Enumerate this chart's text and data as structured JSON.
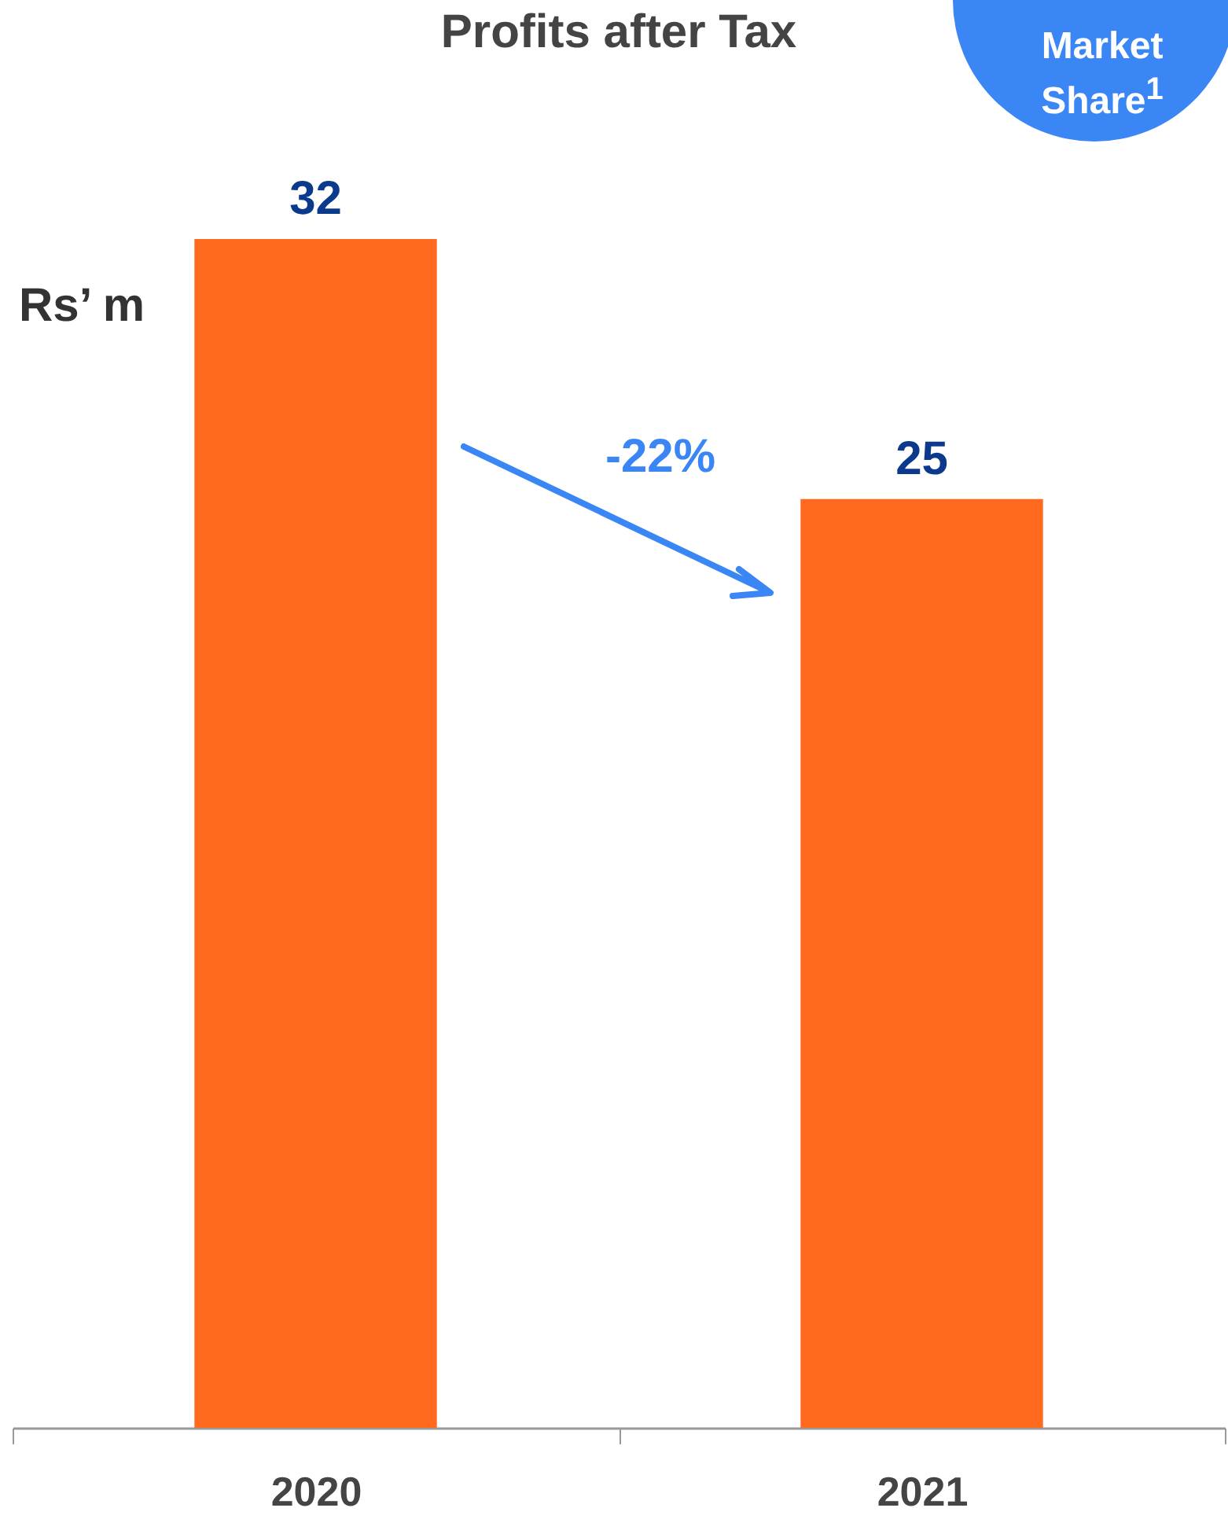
{
  "chart_data": {
    "type": "bar",
    "title": "Profits after Tax",
    "ylabel": "Rs’ m",
    "categories": [
      "2020",
      "2021"
    ],
    "values": [
      32,
      25
    ],
    "color": "#ff6a1f",
    "data_labels": true,
    "tick_labels": "x",
    "annotations": [
      "-22%",
      "Market Share$^{1}$"
    ]
  }
}
